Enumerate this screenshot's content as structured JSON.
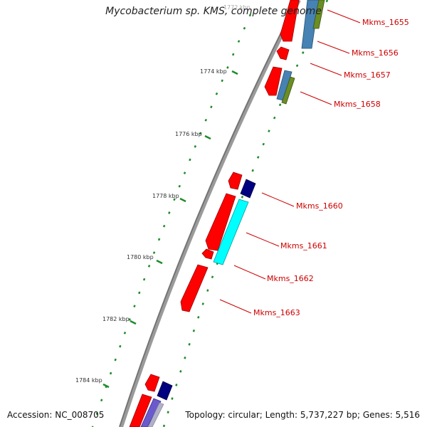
{
  "title": "Mycobacterium sp. KMS, complete genome",
  "accession": "Accession: NC_008705",
  "topology": "Topology: circular; Length: 5,737,227 bp; Genes: 5,516",
  "ruler": [
    "1772 kbp",
    "1774 kbp",
    "1776 kbp",
    "1778 kbp",
    "1780 kbp",
    "1782 kbp",
    "1784 kbp"
  ],
  "genes": [
    "Mkms_1655",
    "Mkms_1656",
    "Mkms_1657",
    "Mkms_1658",
    "Mkms_1660",
    "Mkms_1661",
    "Mkms_1662",
    "Mkms_1663"
  ],
  "colors": {
    "backbone": "#808080",
    "cds": "#ff0000",
    "steelblue": "#4682b4",
    "olive": "#6b8e23",
    "navy": "#000080",
    "cyan": "#00ffff",
    "slate": "#6a5acd",
    "label": "#cc0000",
    "tick": "#228b22"
  }
}
